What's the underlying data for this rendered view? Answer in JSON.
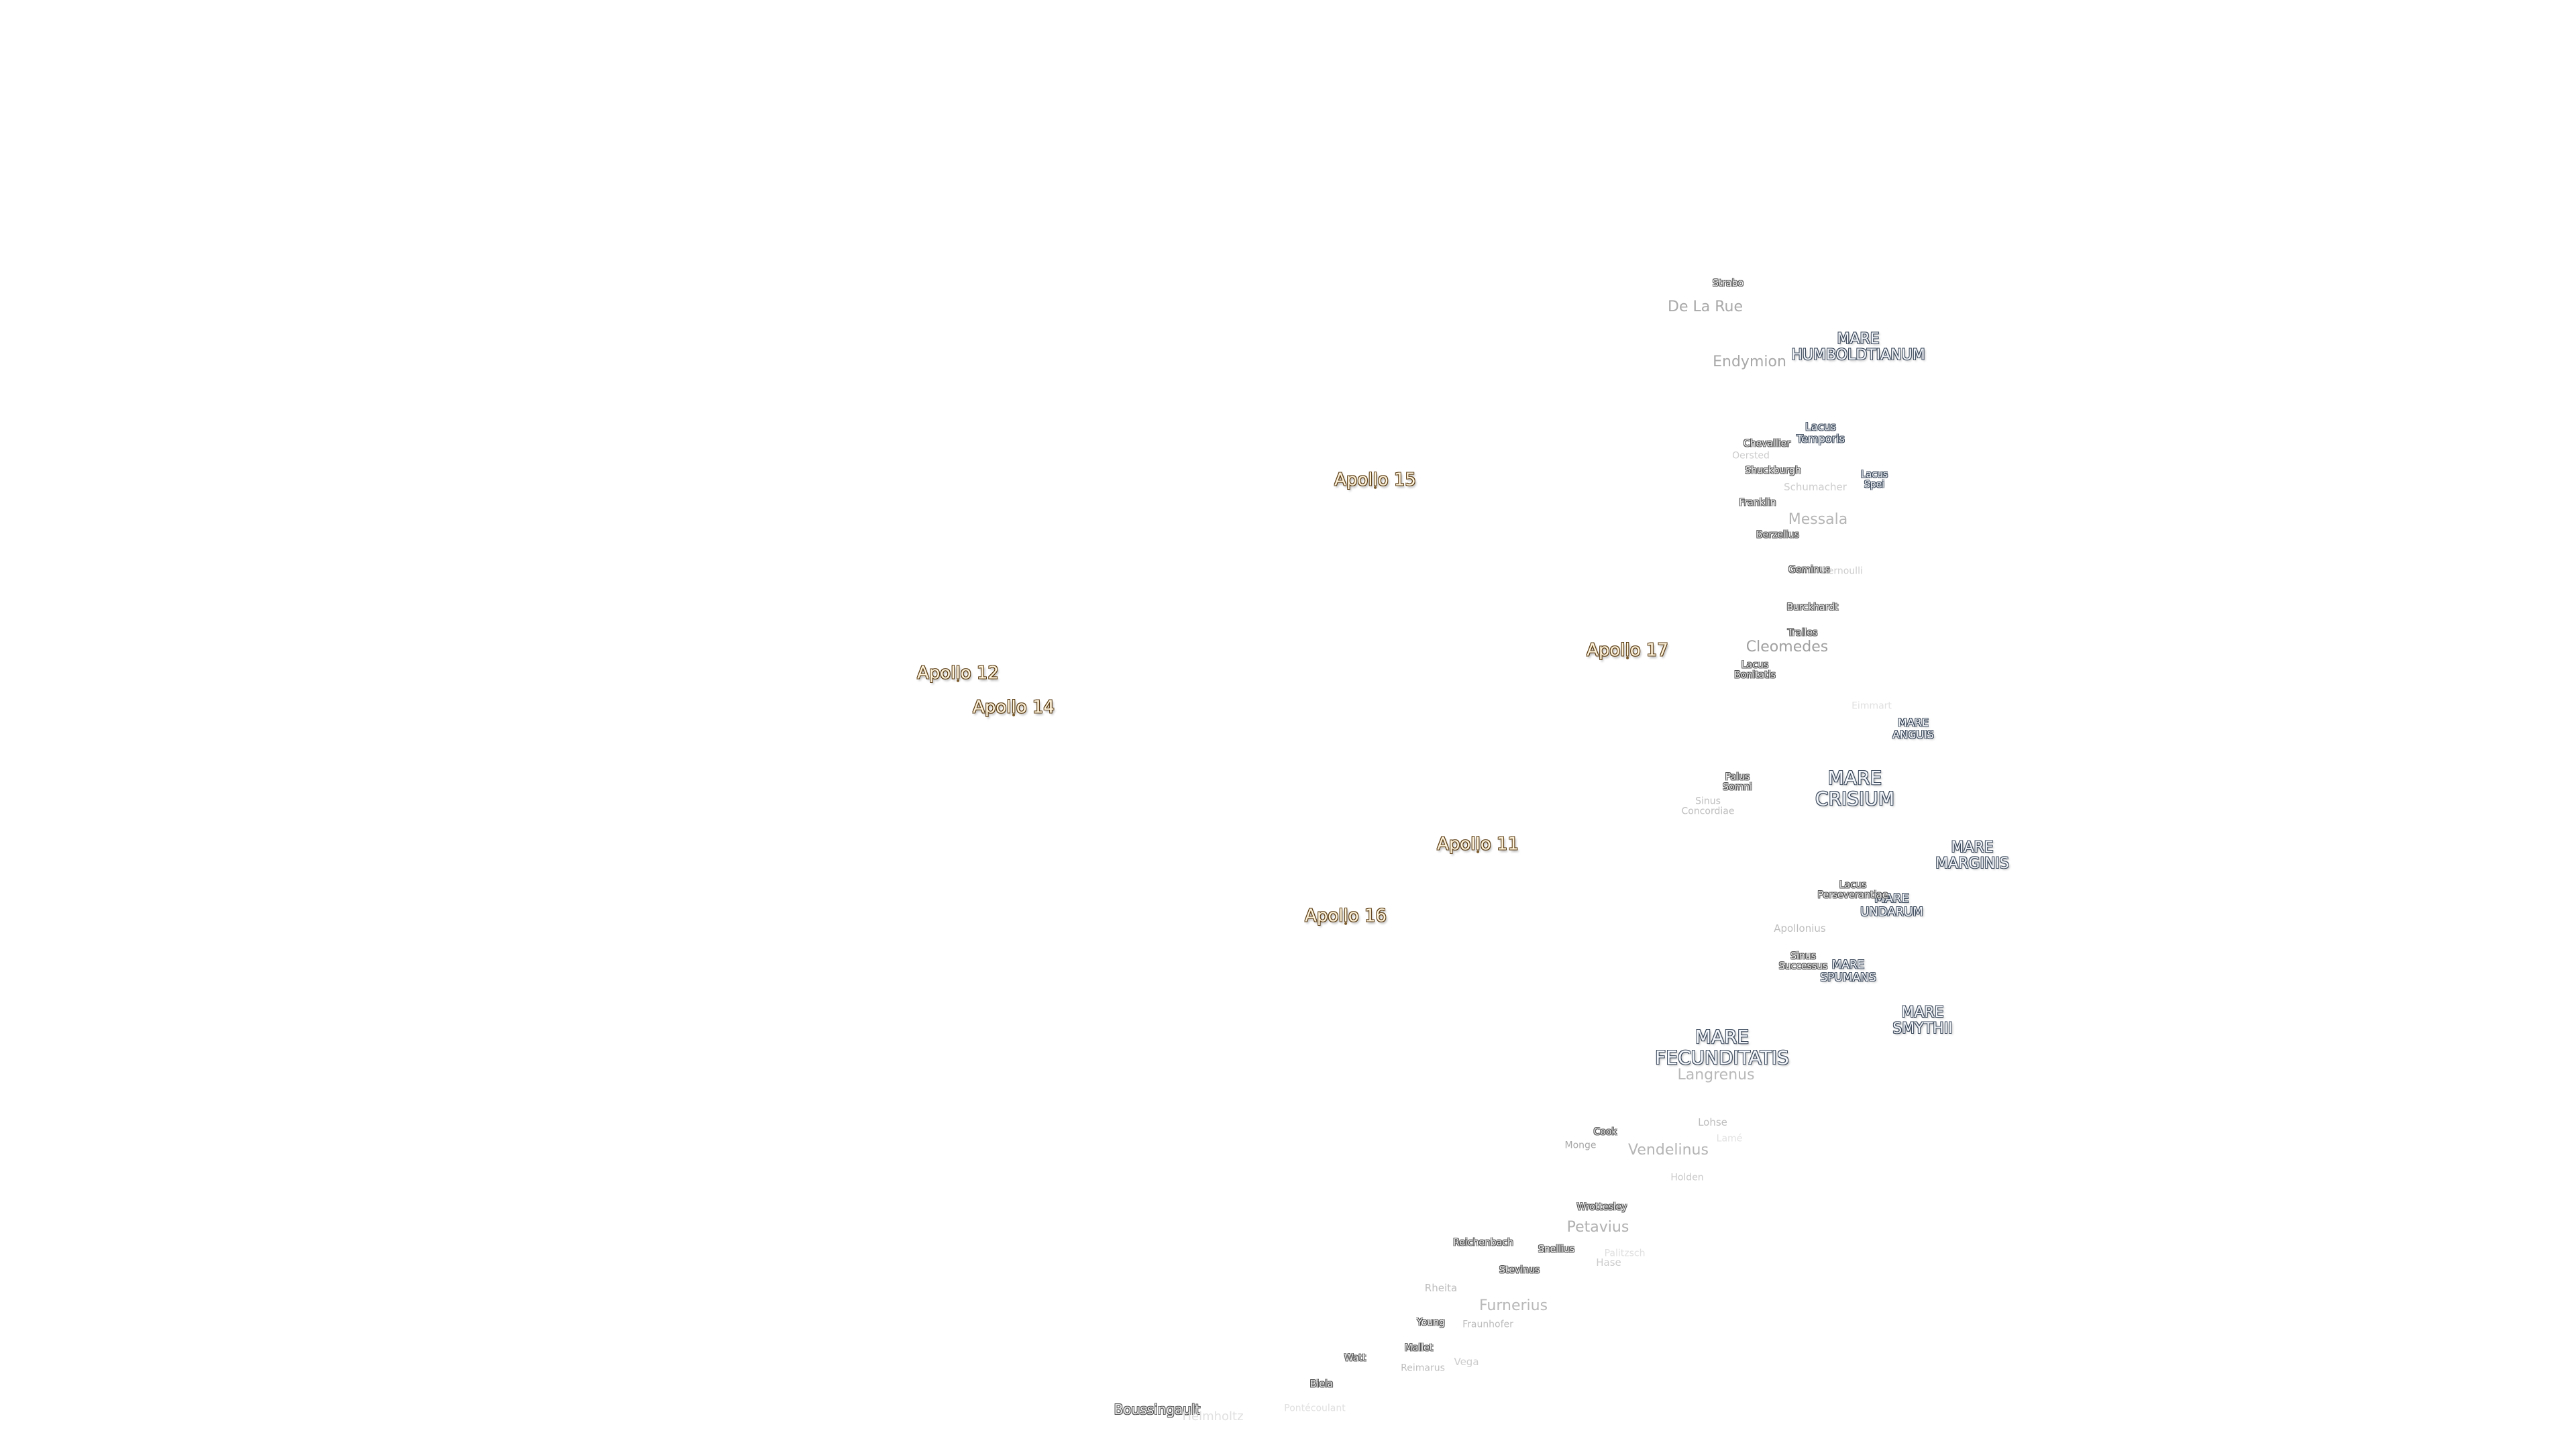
{
  "apollo_sites": [
    "Apollo 15",
    "Apollo 17",
    "Apollo 12",
    "Apollo 14",
    "Apollo 11",
    "Apollo 16"
  ],
  "maria": [
    [
      "MARE",
      "HUMBOLDTIANUM"
    ],
    [
      "MARE",
      "ANGUIS"
    ],
    [
      "MARE",
      "CRISIUM"
    ],
    [
      "MARE",
      "MARGINIS"
    ],
    [
      "MARE",
      "UNDARUM"
    ],
    [
      "MARE",
      "SPUMANS"
    ],
    [
      "MARE",
      "SMYTHII"
    ],
    [
      "MARE",
      "FECUNDITATIS"
    ]
  ],
  "lakes_bays": [
    [
      "Lacus",
      "Temporis"
    ],
    [
      "Lacus",
      "Spei"
    ],
    [
      "Lacus",
      "Bonitatis"
    ],
    [
      "Palus",
      "Somni"
    ],
    [
      "Sinus",
      "Concordiae"
    ],
    [
      "Lacus",
      "Perseverantiae"
    ],
    [
      "Sinus",
      "Successus"
    ]
  ],
  "craters": [
    "Strabo",
    "De La Rue",
    "Endymion",
    "Chevallier",
    "Oersted",
    "Shuckburgh",
    "Schumacher",
    "Franklin",
    "Messala",
    "Berzelius",
    "Geminus",
    "Bernoulli",
    "Burckhardt",
    "Tralles",
    "Cleomedes",
    "Eimmart",
    "Apollonius",
    "Langrenus",
    "Lohse",
    "Lamé",
    "Cook",
    "Monge",
    "Vendelinus",
    "Holden",
    "Wrottesley",
    "Petavius",
    "Reichenbach",
    "Snellius",
    "Palitzsch",
    "Hase",
    "Stevinus",
    "Rheita",
    "Furnerius",
    "Young",
    "Fraunhofer",
    "Mallet",
    "Watt",
    "Reimarus",
    "Vega",
    "Biela",
    "Boussingault",
    "Helmholtz",
    "Pontécoulant"
  ]
}
